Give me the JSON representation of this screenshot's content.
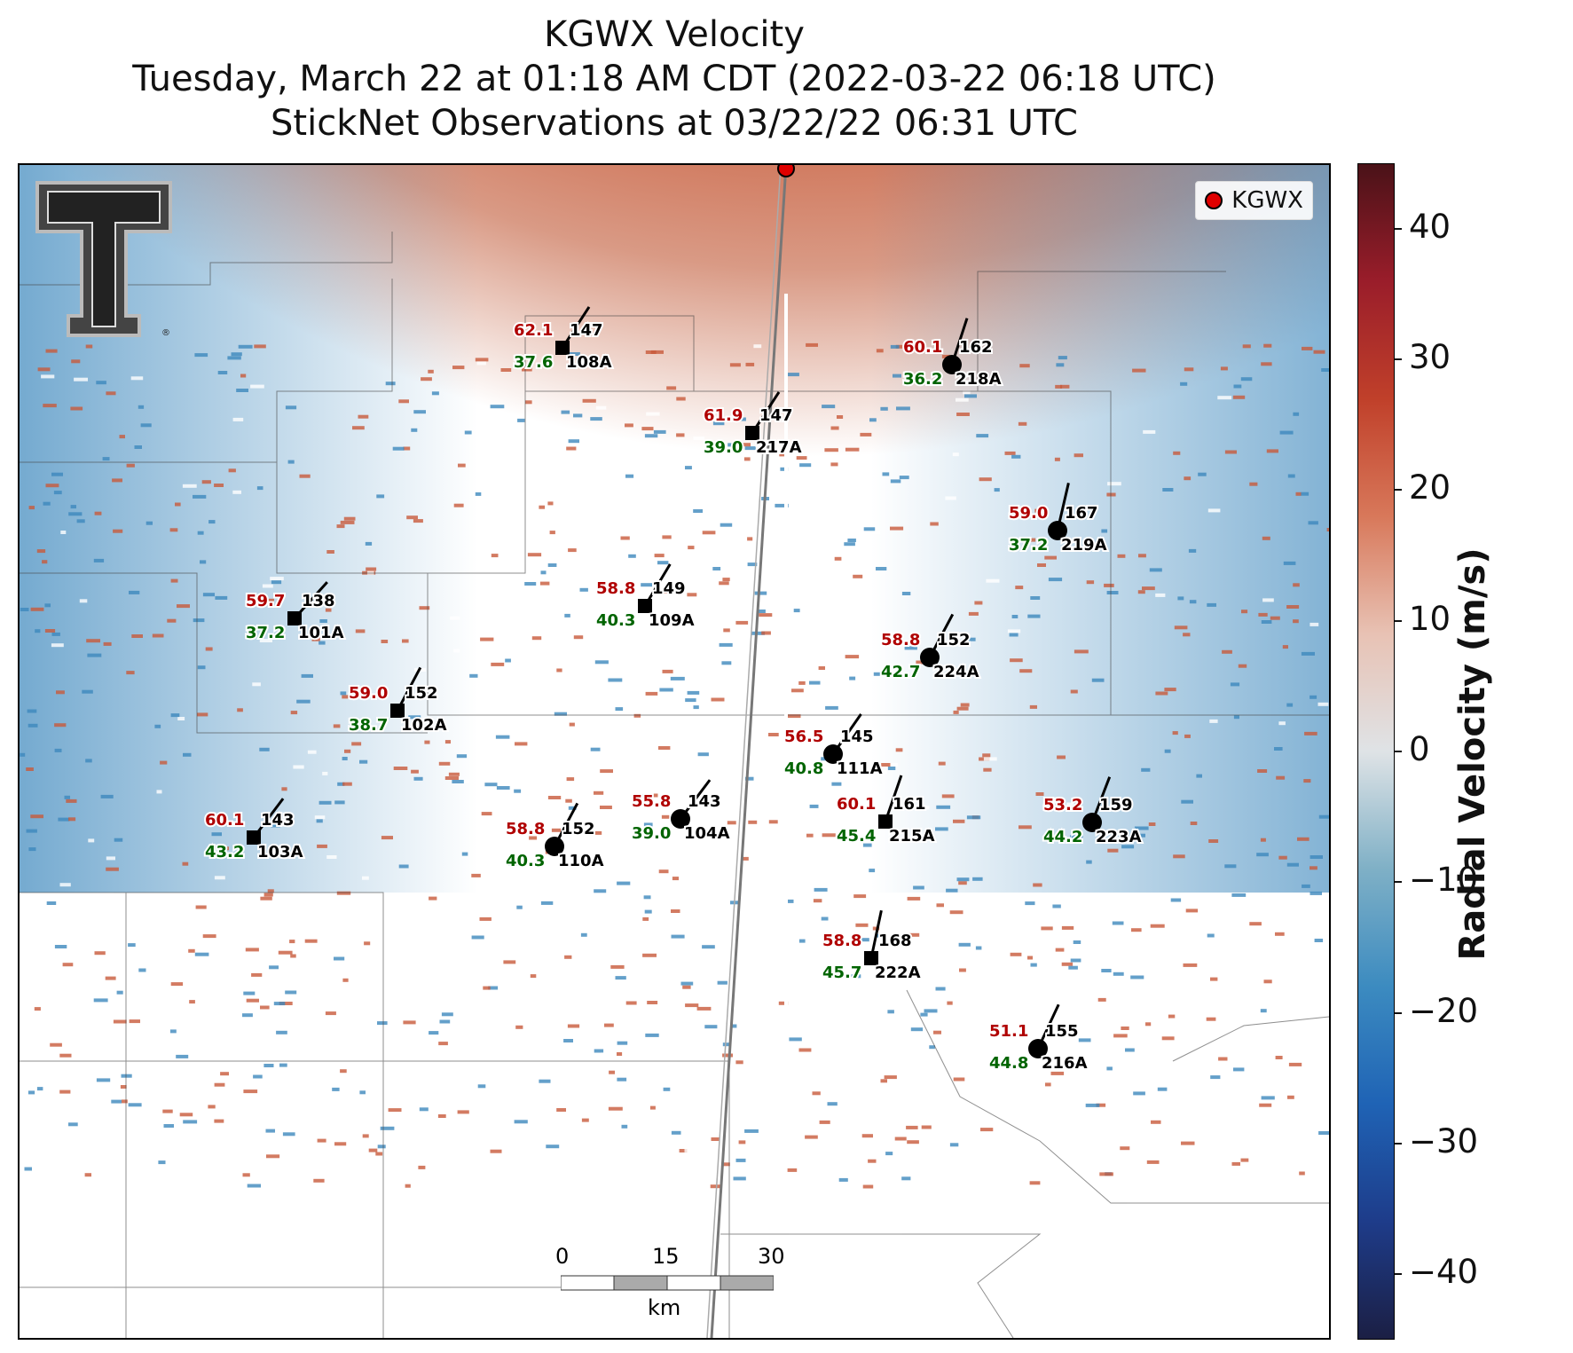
{
  "title": {
    "line1": "KGWX Velocity",
    "line2": "Tuesday, March 22 at 01:18 AM CDT (2022-03-22 06:18 UTC)",
    "line3": "StickNet Observations at 03/22/22 06:31 UTC"
  },
  "legend": {
    "label": "KGWX",
    "marker_color": "#e00000"
  },
  "logo": {
    "text": "T",
    "icon": "texas-tech-double-t-logo"
  },
  "colorbar": {
    "label": "Radial Velocity (m/s)",
    "ticks": [
      "40",
      "30",
      "20",
      "10",
      "0",
      "−10",
      "−20",
      "−30",
      "−40"
    ],
    "min": -45,
    "max": 45,
    "colors": [
      "#1b1f44",
      "#1e3c8a",
      "#1f63b5",
      "#3c8bc0",
      "#7fb0c6",
      "#dfe3e6",
      "#e8c2b4",
      "#d8785a",
      "#c0402a",
      "#9a1d2a",
      "#4a1218"
    ]
  },
  "scalebar": {
    "ticks": [
      "0",
      "15",
      "30"
    ],
    "unit": "km"
  },
  "stations": [
    {
      "id": "108A",
      "temp": "62.1",
      "dew": "37.6",
      "dir": "147",
      "marker": "square"
    },
    {
      "id": "218A",
      "temp": "60.1",
      "dew": "36.2",
      "dir": "162",
      "marker": "circle"
    },
    {
      "id": "217A",
      "temp": "61.9",
      "dew": "39.0",
      "dir": "147",
      "marker": "square"
    },
    {
      "id": "219A",
      "temp": "59.0",
      "dew": "37.2",
      "dir": "167",
      "marker": "circle"
    },
    {
      "id": "109A",
      "temp": "58.8",
      "dew": "40.3",
      "dir": "149",
      "marker": "square"
    },
    {
      "id": "101A",
      "temp": "59.7",
      "dew": "37.2",
      "dir": "138",
      "marker": "square"
    },
    {
      "id": "224A",
      "temp": "58.8",
      "dew": "42.7",
      "dir": "152",
      "marker": "circle"
    },
    {
      "id": "102A",
      "temp": "59.0",
      "dew": "38.7",
      "dir": "152",
      "marker": "square"
    },
    {
      "id": "111A",
      "temp": "56.5",
      "dew": "40.8",
      "dir": "145",
      "marker": "circle"
    },
    {
      "id": "104A",
      "temp": "55.8",
      "dew": "39.0",
      "dir": "143",
      "marker": "circle"
    },
    {
      "id": "103A",
      "temp": "60.1",
      "dew": "43.2",
      "dir": "143",
      "marker": "square"
    },
    {
      "id": "110A",
      "temp": "58.8",
      "dew": "40.3",
      "dir": "152",
      "marker": "circle"
    },
    {
      "id": "215A",
      "temp": "60.1",
      "dew": "45.4",
      "dir": "161",
      "marker": "square"
    },
    {
      "id": "223A",
      "temp": "53.2",
      "dew": "44.2",
      "dir": "159",
      "marker": "circle"
    },
    {
      "id": "222A",
      "temp": "58.8",
      "dew": "45.7",
      "dir": "168",
      "marker": "square"
    },
    {
      "id": "216A",
      "temp": "51.1",
      "dew": "44.8",
      "dir": "155",
      "marker": "circle"
    }
  ]
}
